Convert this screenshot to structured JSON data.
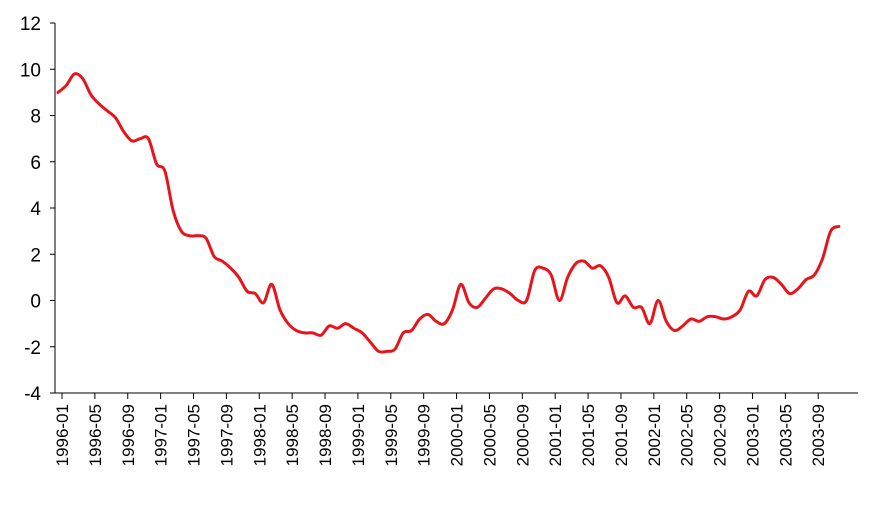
{
  "chart_data": {
    "type": "line",
    "title": "",
    "xlabel": "",
    "ylabel": "",
    "ylim": [
      -4,
      12
    ],
    "yticks": [
      -4,
      -2,
      0,
      2,
      4,
      6,
      8,
      10,
      12
    ],
    "xtick_labels": [
      "1996-01",
      "1996-05",
      "1996-09",
      "1997-01",
      "1997-05",
      "1997-09",
      "1998-01",
      "1998-05",
      "1998-09",
      "1999-01",
      "1999-05",
      "1999-09",
      "2000-01",
      "2000-05",
      "2000-09",
      "2001-01",
      "2001-05",
      "2001-09",
      "2002-01",
      "2002-05",
      "2002-09",
      "2003-01",
      "2003-05",
      "2003-09"
    ],
    "grid": false,
    "line_color": "#e8141c",
    "x": [
      "1996-01",
      "1996-02",
      "1996-03",
      "1996-04",
      "1996-05",
      "1996-06",
      "1996-07",
      "1996-08",
      "1996-09",
      "1996-10",
      "1996-11",
      "1996-12",
      "1997-01",
      "1997-02",
      "1997-03",
      "1997-04",
      "1997-05",
      "1997-06",
      "1997-07",
      "1997-08",
      "1997-09",
      "1997-10",
      "1997-11",
      "1997-12",
      "1998-01",
      "1998-02",
      "1998-03",
      "1998-04",
      "1998-05",
      "1998-06",
      "1998-07",
      "1998-08",
      "1998-09",
      "1998-10",
      "1998-11",
      "1998-12",
      "1999-01",
      "1999-02",
      "1999-03",
      "1999-04",
      "1999-05",
      "1999-06",
      "1999-07",
      "1999-08",
      "1999-09",
      "1999-10",
      "1999-11",
      "1999-12",
      "2000-01",
      "2000-02",
      "2000-03",
      "2000-04",
      "2000-05",
      "2000-06",
      "2000-07",
      "2000-08",
      "2000-09",
      "2000-10",
      "2000-11",
      "2000-12",
      "2001-01",
      "2001-02",
      "2001-03",
      "2001-04",
      "2001-05",
      "2001-06",
      "2001-07",
      "2001-08",
      "2001-09",
      "2001-10",
      "2001-11",
      "2001-12",
      "2002-01",
      "2002-02",
      "2002-03",
      "2002-04",
      "2002-05",
      "2002-06",
      "2002-07",
      "2002-08",
      "2002-09",
      "2002-10",
      "2002-11",
      "2002-12",
      "2003-01",
      "2003-02",
      "2003-03",
      "2003-04",
      "2003-05",
      "2003-06",
      "2003-07",
      "2003-08",
      "2003-09",
      "2003-10",
      "2003-11",
      "2003-12"
    ],
    "series": [
      {
        "values": [
          9.0,
          9.3,
          9.8,
          9.6,
          8.9,
          8.5,
          8.2,
          7.9,
          7.3,
          6.9,
          7.0,
          7.0,
          5.9,
          5.6,
          3.9,
          3.0,
          2.8,
          2.8,
          2.7,
          1.9,
          1.7,
          1.4,
          1.0,
          0.4,
          0.3,
          -0.1,
          0.7,
          -0.4,
          -1.0,
          -1.3,
          -1.4,
          -1.4,
          -1.5,
          -1.1,
          -1.2,
          -1.0,
          -1.2,
          -1.4,
          -1.8,
          -2.2,
          -2.2,
          -2.1,
          -1.4,
          -1.3,
          -0.8,
          -0.6,
          -0.9,
          -1.0,
          -0.4,
          0.7,
          -0.1,
          -0.3,
          0.1,
          0.5,
          0.5,
          0.3,
          0.0,
          0.0,
          1.3,
          1.4,
          1.1,
          0.0,
          1.0,
          1.6,
          1.7,
          1.4,
          1.5,
          1.0,
          -0.1,
          0.2,
          -0.3,
          -0.3,
          -1.0,
          0.0,
          -0.9,
          -1.3,
          -1.1,
          -0.8,
          -0.9,
          -0.7,
          -0.7,
          -0.8,
          -0.7,
          -0.4,
          0.4,
          0.2,
          0.9,
          1.0,
          0.7,
          0.3,
          0.5,
          0.9,
          1.1,
          1.8,
          3.0,
          3.2
        ]
      }
    ]
  }
}
